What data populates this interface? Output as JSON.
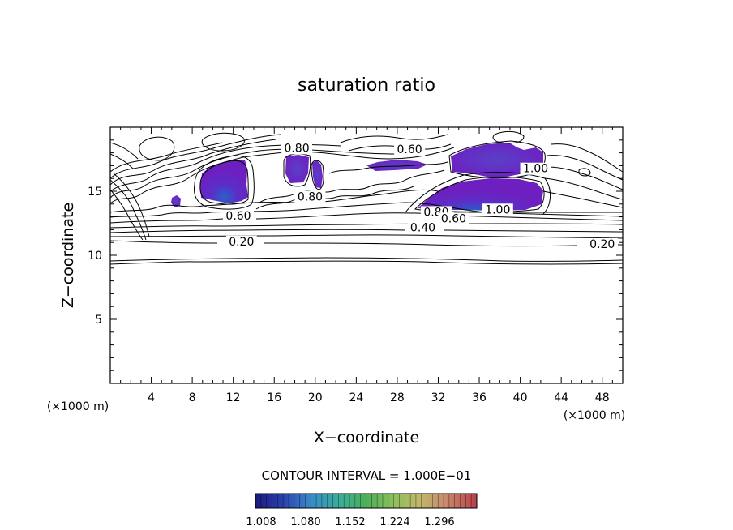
{
  "chart_data": {
    "type": "contour",
    "title": "saturation ratio",
    "xlabel": "X−coordinate",
    "ylabel": "Z−coordinate",
    "x_unit": "(×1000 m)",
    "z_unit": "(×1000 m)",
    "xlim": [
      0,
      50
    ],
    "ylim": [
      0,
      20
    ],
    "x_ticks": [
      4,
      8,
      12,
      16,
      20,
      24,
      28,
      32,
      36,
      40,
      44,
      48
    ],
    "y_ticks": [
      5,
      10,
      15
    ],
    "contour_interval_text": "CONTOUR INTERVAL = 1.000E−01",
    "contour_labels": [
      {
        "text": "0.80",
        "x": 18.2,
        "z": 18.2
      },
      {
        "text": "0.60",
        "x": 29.2,
        "z": 18.1
      },
      {
        "text": "1.00",
        "x": 41.5,
        "z": 16.6
      },
      {
        "text": "0.80",
        "x": 19.5,
        "z": 14.4
      },
      {
        "text": "0.60",
        "x": 12.5,
        "z": 12.9
      },
      {
        "text": "0.80",
        "x": 31.8,
        "z": 13.2
      },
      {
        "text": "0.60",
        "x": 33.5,
        "z": 12.7
      },
      {
        "text": "1.00",
        "x": 37.8,
        "z": 13.4
      },
      {
        "text": "0.40",
        "x": 30.5,
        "z": 12.0
      },
      {
        "text": "0.20",
        "x": 12.8,
        "z": 10.9
      },
      {
        "text": "0.20",
        "x": 48.0,
        "z": 10.7
      }
    ],
    "colorbar": {
      "colors": [
        "#1a1a7a",
        "#2a3fae",
        "#3a8ac8",
        "#3aae9a",
        "#4cae5a",
        "#8ac05a",
        "#c0b86a",
        "#c88a6e",
        "#c0505a",
        "#b8404a"
      ],
      "tick_labels": [
        "1.008",
        "1.080",
        "1.152",
        "1.224",
        "1.296"
      ]
    },
    "supersaturated_fill_color": "#6e1fc0"
  }
}
